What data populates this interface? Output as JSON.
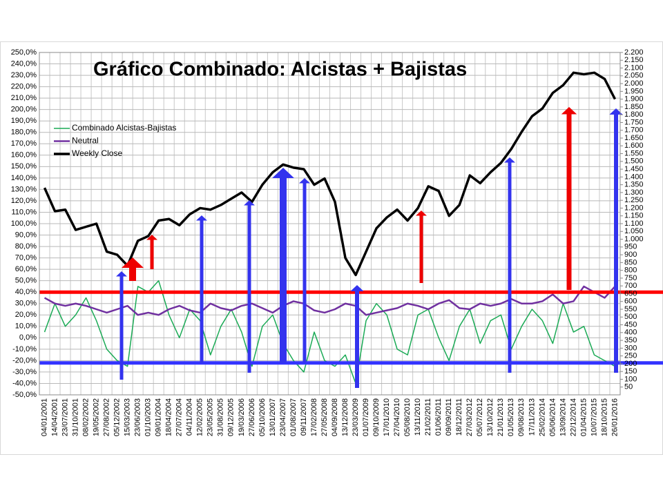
{
  "chart_data": {
    "type": "line",
    "title": "Gráfico Combinado: Alcistas + Bajistas",
    "categories": [
      "04/01/2001",
      "14/04/2001",
      "23/07/2001",
      "31/10/2001",
      "08/02/2002",
      "19/05/2002",
      "27/08/2002",
      "05/12/2002",
      "15/03/2003",
      "23/06/2003",
      "01/10/2003",
      "09/01/2004",
      "18/04/2004",
      "27/07/2004",
      "04/11/2004",
      "12/02/2005",
      "23/05/2005",
      "31/08/2005",
      "09/12/2005",
      "19/03/2006",
      "27/06/2006",
      "05/10/2006",
      "13/01/2007",
      "23/04/2007",
      "01/08/2007",
      "09/11/2007",
      "17/02/2008",
      "27/05/2008",
      "04/09/2008",
      "13/12/2008",
      "23/03/2009",
      "01/07/2009",
      "09/10/2009",
      "17/01/2010",
      "27/04/2010",
      "05/08/2010",
      "13/11/2010",
      "21/02/2011",
      "01/06/2011",
      "09/09/2011",
      "18/12/2011",
      "27/03/2012",
      "05/07/2012",
      "13/10/2012",
      "21/01/2013",
      "01/05/2013",
      "09/08/2013",
      "17/11/2013",
      "25/02/2014",
      "05/06/2014",
      "13/09/2014",
      "22/12/2014",
      "01/04/2015",
      "10/07/2015",
      "18/10/2015",
      "26/01/2016"
    ],
    "series": [
      {
        "name": "Combinado Alcistas-Bajistas",
        "color": "#1aaa55",
        "values": [
          5,
          30,
          10,
          20,
          35,
          15,
          -10,
          -20,
          -25,
          45,
          40,
          50,
          20,
          0,
          25,
          15,
          -15,
          10,
          25,
          5,
          -25,
          10,
          20,
          -5,
          -20,
          -30,
          5,
          -20,
          -25,
          -15,
          -40,
          15,
          30,
          20,
          -10,
          -15,
          20,
          25,
          0,
          -20,
          10,
          25,
          -5,
          15,
          20,
          -10,
          10,
          25,
          15,
          -5,
          30,
          5,
          10,
          -15,
          -20,
          -25
        ]
      },
      {
        "name": "Neutral",
        "color": "#7030a0",
        "values": [
          35,
          30,
          28,
          30,
          28,
          25,
          22,
          25,
          28,
          20,
          22,
          20,
          25,
          28,
          24,
          22,
          30,
          26,
          24,
          28,
          30,
          26,
          22,
          28,
          32,
          30,
          24,
          22,
          25,
          30,
          28,
          20,
          22,
          24,
          26,
          30,
          28,
          25,
          30,
          33,
          26,
          25,
          30,
          28,
          30,
          34,
          30,
          30,
          32,
          38,
          30,
          32,
          45,
          40,
          35,
          45
        ]
      },
      {
        "name": "Weekly Close",
        "color": "#000000",
        "axis": "y2",
        "values": [
          1330,
          1180,
          1190,
          1060,
          1080,
          1100,
          920,
          900,
          830,
          990,
          1020,
          1120,
          1130,
          1090,
          1160,
          1200,
          1190,
          1220,
          1260,
          1300,
          1240,
          1350,
          1430,
          1480,
          1460,
          1450,
          1350,
          1390,
          1240,
          880,
          770,
          920,
          1070,
          1140,
          1190,
          1120,
          1200,
          1340,
          1310,
          1150,
          1220,
          1410,
          1360,
          1430,
          1490,
          1580,
          1690,
          1790,
          1840,
          1940,
          1990,
          2070,
          2060,
          2070,
          2030,
          1900
        ]
      }
    ],
    "ylim": [
      -50,
      250
    ],
    "yticks": [
      {
        "value": -50,
        "label": "-50,0%"
      },
      {
        "value": -40,
        "label": "-40,0%"
      },
      {
        "value": -30,
        "label": "-30,0%"
      },
      {
        "value": -20,
        "label": "-20,0%"
      },
      {
        "value": -10,
        "label": "-10,0%"
      },
      {
        "value": 0,
        "label": "0,0%"
      },
      {
        "value": 10,
        "label": "10,0%"
      },
      {
        "value": 20,
        "label": "20,0%"
      },
      {
        "value": 30,
        "label": "30,0%"
      },
      {
        "value": 40,
        "label": "40,0%"
      },
      {
        "value": 50,
        "label": "50,0%"
      },
      {
        "value": 60,
        "label": "60,0%"
      },
      {
        "value": 70,
        "label": "70,0%"
      },
      {
        "value": 80,
        "label": "80,0%"
      },
      {
        "value": 90,
        "label": "90,0%"
      },
      {
        "value": 100,
        "label": "100,0%"
      },
      {
        "value": 110,
        "label": "110,0%"
      },
      {
        "value": 120,
        "label": "120,0%"
      },
      {
        "value": 130,
        "label": "130,0%"
      },
      {
        "value": 140,
        "label": "140,0%"
      },
      {
        "value": 150,
        "label": "150,0%"
      },
      {
        "value": 160,
        "label": "160,0%"
      },
      {
        "value": 170,
        "label": "170,0%"
      },
      {
        "value": 180,
        "label": "180,0%"
      },
      {
        "value": 190,
        "label": "190,0%"
      },
      {
        "value": 200,
        "label": "200,0%"
      },
      {
        "value": 210,
        "label": "210,0%"
      },
      {
        "value": 220,
        "label": "220,0%"
      },
      {
        "value": 230,
        "label": "230,0%"
      },
      {
        "value": 240,
        "label": "240,0%"
      },
      {
        "value": 250,
        "label": "250,0%"
      }
    ],
    "y2lim": [
      0,
      2200
    ],
    "y2ticks": [
      50,
      100,
      150,
      200,
      250,
      300,
      350,
      400,
      450,
      500,
      550,
      600,
      650,
      700,
      750,
      800,
      850,
      900,
      950,
      {
        "value": 1000,
        "label": "1.000"
      },
      {
        "value": 1050,
        "label": "1.050"
      },
      {
        "value": 1100,
        "label": "1.100"
      },
      {
        "value": 1150,
        "label": "1.150"
      },
      {
        "value": 1200,
        "label": "1.200"
      },
      {
        "value": 1250,
        "label": "1.250"
      },
      {
        "value": 1300,
        "label": "1.300"
      },
      {
        "value": 1350,
        "label": "1.350"
      },
      {
        "value": 1400,
        "label": "1.400"
      },
      {
        "value": 1450,
        "label": "1.450"
      },
      {
        "value": 1500,
        "label": "1.500"
      },
      {
        "value": 1550,
        "label": "1.550"
      },
      {
        "value": 1600,
        "label": "1.600"
      },
      {
        "value": 1650,
        "label": "1.650"
      },
      {
        "value": 1700,
        "label": "1.700"
      },
      {
        "value": 1750,
        "label": "1.750"
      },
      {
        "value": 1800,
        "label": "1.800"
      },
      {
        "value": 1850,
        "label": "1.850"
      },
      {
        "value": 1900,
        "label": "1.900"
      },
      {
        "value": 1950,
        "label": "1.950"
      },
      {
        "value": 2000,
        "label": "2.000"
      },
      {
        "value": 2050,
        "label": "2.050"
      },
      {
        "value": 2100,
        "label": "2.100"
      },
      {
        "value": 2150,
        "label": "2.150"
      },
      {
        "value": 2200,
        "label": "2.200"
      }
    ],
    "reference_lines": [
      {
        "value": 40,
        "color": "#ff0000"
      },
      {
        "value": -22,
        "color": "#3333ff"
      }
    ],
    "grid": true
  }
}
